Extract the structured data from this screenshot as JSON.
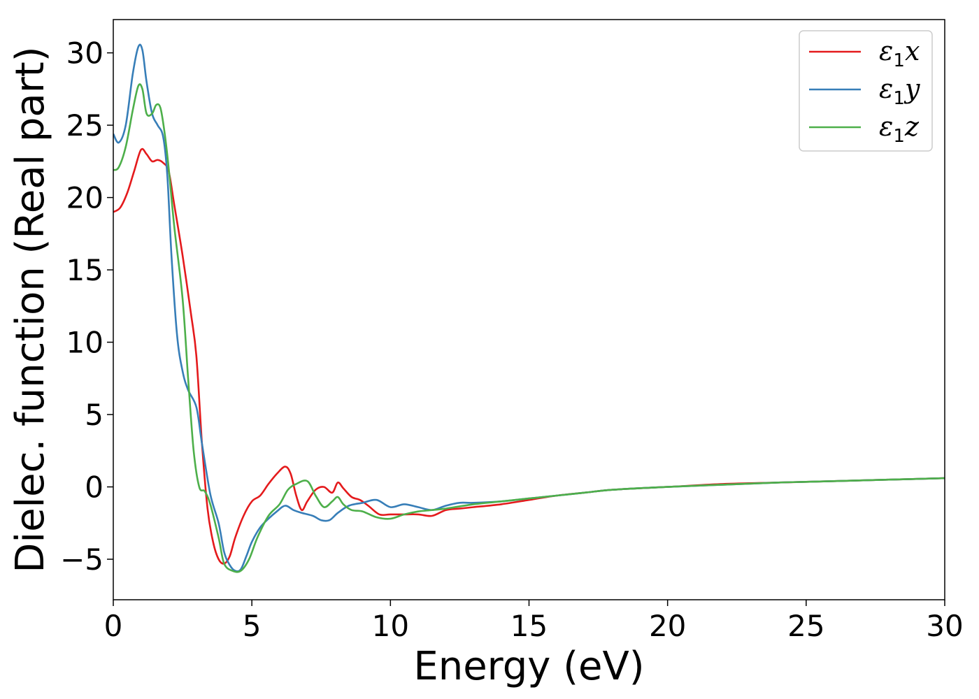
{
  "chart_data": {
    "type": "line",
    "title": "",
    "xlabel": "Energy (eV)",
    "ylabel": "Dielec. function (Real part)",
    "xlim": [
      0,
      30
    ],
    "ylim": [
      -7.8,
      32.3
    ],
    "xticks": [
      0,
      5,
      10,
      15,
      20,
      25,
      30
    ],
    "xtick_labels": [
      "0",
      "5",
      "10",
      "15",
      "20",
      "25",
      "30"
    ],
    "yticks": [
      -5,
      0,
      5,
      10,
      15,
      20,
      25,
      30
    ],
    "ytick_labels": [
      "−5",
      "0",
      "5",
      "10",
      "15",
      "20",
      "25",
      "30"
    ],
    "grid": false,
    "legend_position": "top-right",
    "series": [
      {
        "name": "ε₁x",
        "legend_main": "ε",
        "legend_sub": "1",
        "legend_tail": "x",
        "color": "#e41a1c",
        "x": [
          0,
          0.25,
          0.5,
          0.75,
          1.0,
          1.2,
          1.4,
          1.6,
          1.8,
          2.0,
          2.2,
          2.5,
          2.8,
          3.0,
          3.2,
          3.4,
          3.6,
          3.8,
          4.0,
          4.2,
          4.4,
          4.7,
          5.0,
          5.3,
          5.6,
          5.9,
          6.2,
          6.4,
          6.6,
          6.8,
          7.0,
          7.3,
          7.6,
          7.9,
          8.1,
          8.3,
          8.6,
          8.9,
          9.2,
          9.6,
          10.0,
          10.5,
          11.0,
          11.5,
          12.0,
          12.5,
          13.0,
          14.0,
          15.0,
          16.0,
          17.0,
          18.0,
          20.0,
          22.0,
          24.0,
          26.0,
          28.0,
          30.0
        ],
        "y": [
          19.0,
          19.3,
          20.3,
          21.8,
          23.3,
          23.0,
          22.5,
          22.6,
          22.4,
          21.8,
          19.5,
          16.0,
          12.0,
          9.0,
          3.0,
          -1.5,
          -3.8,
          -5.0,
          -5.3,
          -4.8,
          -3.5,
          -2.0,
          -1.0,
          -0.6,
          0.2,
          0.9,
          1.4,
          0.9,
          -0.6,
          -1.6,
          -1.0,
          -0.2,
          0.0,
          -0.4,
          0.3,
          -0.1,
          -0.7,
          -0.9,
          -1.3,
          -1.9,
          -1.9,
          -1.9,
          -1.9,
          -2.0,
          -1.6,
          -1.5,
          -1.4,
          -1.2,
          -0.9,
          -0.6,
          -0.4,
          -0.2,
          0.0,
          0.2,
          0.3,
          0.4,
          0.5,
          0.6
        ]
      },
      {
        "name": "ε₁y",
        "legend_main": "ε",
        "legend_sub": "1",
        "legend_tail": "y",
        "color": "#377eb8",
        "x": [
          0,
          0.2,
          0.45,
          0.7,
          0.9,
          1.05,
          1.2,
          1.4,
          1.6,
          1.8,
          1.95,
          2.1,
          2.3,
          2.5,
          2.7,
          3.0,
          3.2,
          3.5,
          3.8,
          4.0,
          4.2,
          4.4,
          4.6,
          4.8,
          5.0,
          5.3,
          5.6,
          5.9,
          6.2,
          6.5,
          6.8,
          7.2,
          7.5,
          7.8,
          8.1,
          8.5,
          9.0,
          9.5,
          10.0,
          10.5,
          11.0,
          11.5,
          12.0,
          12.5,
          13.0,
          14.0,
          15.0,
          16.0,
          17.0,
          18.0,
          20.0,
          22.0,
          24.0,
          26.0,
          28.0,
          30.0
        ],
        "y": [
          24.4,
          23.8,
          25.0,
          28.5,
          30.4,
          30.2,
          28.0,
          25.8,
          25.0,
          24.2,
          21.5,
          16.0,
          10.5,
          8.0,
          6.7,
          5.5,
          3.0,
          -0.5,
          -2.5,
          -4.5,
          -5.4,
          -5.8,
          -5.7,
          -4.8,
          -3.8,
          -2.8,
          -2.2,
          -1.7,
          -1.3,
          -1.6,
          -1.8,
          -2.0,
          -2.3,
          -2.3,
          -1.8,
          -1.3,
          -1.1,
          -0.9,
          -1.4,
          -1.2,
          -1.4,
          -1.6,
          -1.3,
          -1.1,
          -1.1,
          -1.0,
          -0.8,
          -0.6,
          -0.4,
          -0.2,
          0.0,
          0.15,
          0.3,
          0.4,
          0.5,
          0.6
        ]
      },
      {
        "name": "ε₁z",
        "legend_main": "ε",
        "legend_sub": "1",
        "legend_tail": "z",
        "color": "#4daf4a",
        "x": [
          0,
          0.2,
          0.45,
          0.7,
          0.9,
          1.05,
          1.2,
          1.4,
          1.55,
          1.7,
          1.85,
          2.0,
          2.2,
          2.5,
          2.7,
          2.9,
          3.1,
          3.3,
          3.5,
          3.8,
          4.0,
          4.3,
          4.6,
          4.9,
          5.2,
          5.6,
          6.0,
          6.3,
          6.6,
          7.0,
          7.3,
          7.6,
          7.9,
          8.1,
          8.3,
          8.6,
          9.0,
          9.5,
          10.0,
          10.5,
          11.0,
          11.5,
          12.0,
          13.0,
          14.0,
          15.0,
          16.0,
          17.0,
          18.0,
          20.0,
          22.0,
          24.0,
          26.0,
          28.0,
          30.0
        ],
        "y": [
          21.9,
          22.1,
          23.5,
          26.0,
          27.7,
          27.5,
          25.8,
          25.8,
          26.4,
          26.2,
          24.5,
          22.0,
          18.0,
          13.0,
          7.5,
          2.5,
          0.0,
          -0.3,
          -1.2,
          -3.5,
          -5.3,
          -5.8,
          -5.8,
          -5.0,
          -3.5,
          -2.0,
          -1.2,
          -0.2,
          0.2,
          0.4,
          -0.6,
          -1.4,
          -1.0,
          -0.7,
          -1.2,
          -1.6,
          -1.7,
          -2.1,
          -2.2,
          -1.9,
          -1.7,
          -1.6,
          -1.5,
          -1.2,
          -1.0,
          -0.8,
          -0.6,
          -0.4,
          -0.2,
          0.0,
          0.15,
          0.3,
          0.4,
          0.5,
          0.6
        ]
      }
    ]
  }
}
